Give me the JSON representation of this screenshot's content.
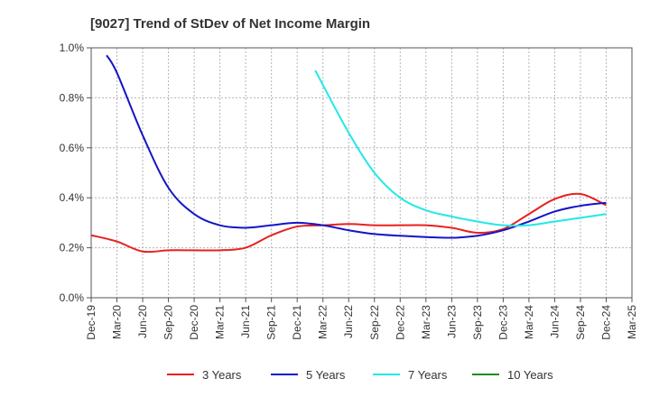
{
  "chart_data": {
    "type": "line",
    "title": "[9027]  Trend of StDev of Net Income Margin",
    "xlabel": "",
    "ylabel": "",
    "y_ticks": [
      "0.0%",
      "0.2%",
      "0.4%",
      "0.6%",
      "0.8%",
      "1.0%"
    ],
    "ylim": [
      0,
      1.0
    ],
    "x_ticks": [
      "Dec-19",
      "Mar-20",
      "Jun-20",
      "Sep-20",
      "Dec-20",
      "Mar-21",
      "Jun-21",
      "Sep-21",
      "Dec-21",
      "Mar-22",
      "Jun-22",
      "Sep-22",
      "Dec-22",
      "Mar-23",
      "Jun-23",
      "Sep-23",
      "Dec-23",
      "Mar-24",
      "Jun-24",
      "Sep-24",
      "Dec-24",
      "Mar-25"
    ],
    "grid": true,
    "legend_position": "bottom",
    "series": [
      {
        "name": "3 Years",
        "color": "#e8201e",
        "points": [
          [
            0,
            0.25
          ],
          [
            1,
            0.225
          ],
          [
            2,
            0.185
          ],
          [
            3,
            0.19
          ],
          [
            4,
            0.19
          ],
          [
            5,
            0.19
          ],
          [
            6,
            0.2
          ],
          [
            7,
            0.25
          ],
          [
            8,
            0.285
          ],
          [
            9,
            0.29
          ],
          [
            10,
            0.295
          ],
          [
            11,
            0.29
          ],
          [
            12,
            0.29
          ],
          [
            13,
            0.29
          ],
          [
            14,
            0.28
          ],
          [
            15,
            0.26
          ],
          [
            16,
            0.275
          ],
          [
            17,
            0.335
          ],
          [
            18,
            0.395
          ],
          [
            19,
            0.415
          ],
          [
            20,
            0.37
          ]
        ]
      },
      {
        "name": "5 Years",
        "color": "#1414c8",
        "points": [
          [
            0.6,
            0.97
          ],
          [
            1,
            0.9
          ],
          [
            2,
            0.65
          ],
          [
            3,
            0.44
          ],
          [
            4,
            0.335
          ],
          [
            5,
            0.29
          ],
          [
            6,
            0.28
          ],
          [
            7,
            0.29
          ],
          [
            8,
            0.3
          ],
          [
            9,
            0.29
          ],
          [
            10,
            0.27
          ],
          [
            11,
            0.255
          ],
          [
            12,
            0.248
          ],
          [
            13,
            0.243
          ],
          [
            14,
            0.24
          ],
          [
            15,
            0.248
          ],
          [
            16,
            0.27
          ],
          [
            17,
            0.305
          ],
          [
            18,
            0.345
          ],
          [
            19,
            0.368
          ],
          [
            20,
            0.38
          ]
        ]
      },
      {
        "name": "7 Years",
        "color": "#22e8e8",
        "points": [
          [
            8.7,
            0.91
          ],
          [
            10,
            0.66
          ],
          [
            11,
            0.5
          ],
          [
            12,
            0.4
          ],
          [
            13,
            0.35
          ],
          [
            14,
            0.325
          ],
          [
            15,
            0.305
          ],
          [
            16,
            0.29
          ],
          [
            17,
            0.29
          ],
          [
            18,
            0.305
          ],
          [
            19,
            0.32
          ],
          [
            20,
            0.335
          ]
        ]
      },
      {
        "name": "10 Years",
        "color": "#1e8c1e",
        "points": []
      }
    ]
  }
}
